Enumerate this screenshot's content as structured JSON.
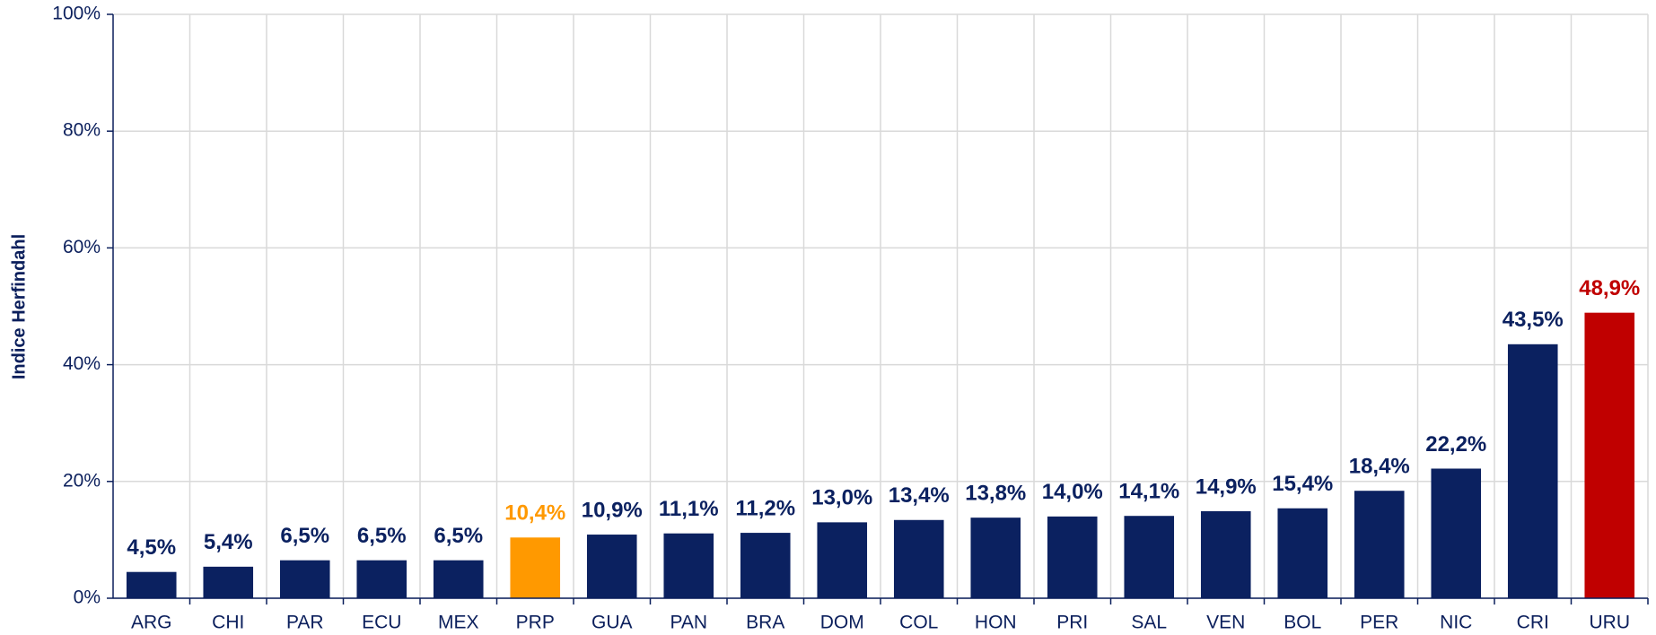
{
  "chart_data": {
    "type": "bar",
    "y_label": "Indice Herfindahl",
    "categories": [
      "ARG",
      "CHI",
      "PAR",
      "ECU",
      "MEX",
      "PRP",
      "GUA",
      "PAN",
      "BRA",
      "DOM",
      "COL",
      "HON",
      "PRI",
      "SAL",
      "VEN",
      "BOL",
      "PER",
      "NIC",
      "CRI",
      "URU"
    ],
    "values": [
      4.5,
      5.4,
      6.5,
      6.5,
      6.5,
      10.4,
      10.9,
      11.1,
      11.2,
      13.0,
      13.4,
      13.8,
      14.0,
      14.1,
      14.9,
      15.4,
      18.4,
      22.2,
      43.5,
      48.9
    ],
    "value_labels": [
      "4,5%",
      "5,4%",
      "6,5%",
      "6,5%",
      "6,5%",
      "10,4%",
      "10,9%",
      "11,1%",
      "11,2%",
      "13,0%",
      "13,4%",
      "13,8%",
      "14,0%",
      "14,1%",
      "14,9%",
      "15,4%",
      "18,4%",
      "22,2%",
      "43,5%",
      "48,9%"
    ],
    "colors": [
      "#0b2160",
      "#0b2160",
      "#0b2160",
      "#0b2160",
      "#0b2160",
      "#ff9900",
      "#0b2160",
      "#0b2160",
      "#0b2160",
      "#0b2160",
      "#0b2160",
      "#0b2160",
      "#0b2160",
      "#0b2160",
      "#0b2160",
      "#0b2160",
      "#0b2160",
      "#0b2160",
      "#0b2160",
      "#c00000"
    ],
    "ylim": [
      0,
      100
    ],
    "yticks": [
      {
        "value": 0,
        "label": "0%"
      },
      {
        "value": 20,
        "label": "20%"
      },
      {
        "value": 40,
        "label": "40%"
      },
      {
        "value": 60,
        "label": "60%"
      },
      {
        "value": 80,
        "label": "80%"
      },
      {
        "value": 100,
        "label": "100%"
      }
    ],
    "grid": true
  }
}
